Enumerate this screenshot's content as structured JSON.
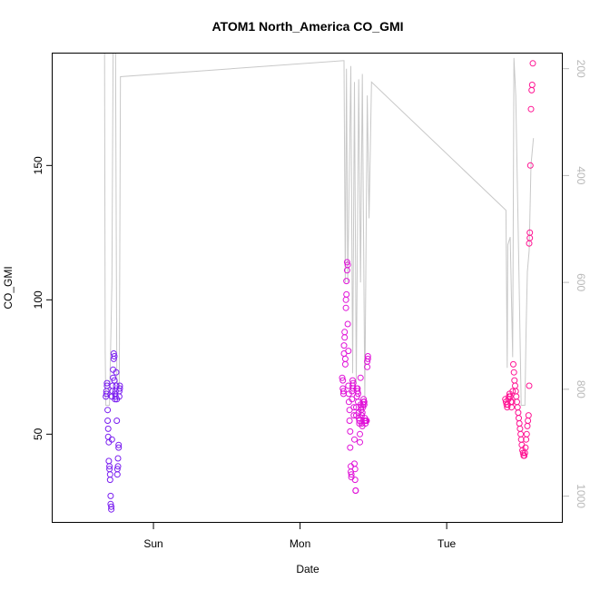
{
  "chart_data": {
    "type": "scatter",
    "title": "ATOM1 North_America CO_GMI",
    "xlabel": "Date",
    "ylabel": "CO_GMI",
    "x_ticks": [
      "Sun",
      "Mon",
      "Tue"
    ],
    "y_ticks": [
      50,
      100,
      150
    ],
    "y2_ticks": [
      200,
      400,
      600,
      800,
      1000
    ],
    "xlim_hours": [
      -16.5,
      67.0
    ],
    "ylim": [
      17,
      192
    ],
    "y2lim": [
      1050,
      170
    ],
    "x_unit": "hours relative to Sun 00:00",
    "y2_reversed": true,
    "grid": false,
    "series": [
      {
        "marker": "open-circle",
        "values": [
          {
            "x": -7.8,
            "y": 64
          },
          {
            "x": -7.7,
            "y": 65
          },
          {
            "x": -7.7,
            "y": 66
          },
          {
            "x": -7.6,
            "y": 68
          },
          {
            "x": -7.6,
            "y": 69
          },
          {
            "x": -7.5,
            "y": 59
          },
          {
            "x": -7.5,
            "y": 55
          },
          {
            "x": -7.4,
            "y": 52
          },
          {
            "x": -7.4,
            "y": 49
          },
          {
            "x": -7.3,
            "y": 47
          },
          {
            "x": -7.3,
            "y": 40
          },
          {
            "x": -7.2,
            "y": 38
          },
          {
            "x": -7.2,
            "y": 37
          },
          {
            "x": -7.1,
            "y": 35
          },
          {
            "x": -7.1,
            "y": 33
          },
          {
            "x": -7.0,
            "y": 27
          },
          {
            "x": -7.0,
            "y": 24
          },
          {
            "x": -6.9,
            "y": 23
          },
          {
            "x": -6.9,
            "y": 22
          },
          {
            "x": -6.8,
            "y": 48
          },
          {
            "x": -6.8,
            "y": 64
          },
          {
            "x": -6.7,
            "y": 66
          },
          {
            "x": -6.7,
            "y": 68
          },
          {
            "x": -6.6,
            "y": 71
          },
          {
            "x": -6.6,
            "y": 74
          },
          {
            "x": -6.5,
            "y": 78
          },
          {
            "x": -6.5,
            "y": 80
          },
          {
            "x": -6.4,
            "y": 79
          },
          {
            "x": -6.4,
            "y": 70
          },
          {
            "x": -6.3,
            "y": 65
          },
          {
            "x": -6.3,
            "y": 63
          },
          {
            "x": -6.2,
            "y": 64
          },
          {
            "x": -6.2,
            "y": 66
          },
          {
            "x": -6.1,
            "y": 73
          },
          {
            "x": -6.1,
            "y": 68
          },
          {
            "x": -6.0,
            "y": 63
          },
          {
            "x": -6.0,
            "y": 55
          },
          {
            "x": -5.9,
            "y": 37
          },
          {
            "x": -5.9,
            "y": 35
          },
          {
            "x": -5.8,
            "y": 38
          },
          {
            "x": -5.8,
            "y": 41
          },
          {
            "x": -5.7,
            "y": 46
          },
          {
            "x": -5.7,
            "y": 45
          },
          {
            "x": -5.6,
            "y": 66
          },
          {
            "x": -5.6,
            "y": 64
          },
          {
            "x": -5.5,
            "y": 68
          },
          {
            "x": -5.5,
            "y": 67
          },
          {
            "x": 30.9,
            "y": 71
          },
          {
            "x": 31.0,
            "y": 70
          },
          {
            "x": 31.0,
            "y": 67
          },
          {
            "x": 31.1,
            "y": 66
          },
          {
            "x": 31.1,
            "y": 65
          },
          {
            "x": 31.2,
            "y": 80
          },
          {
            "x": 31.2,
            "y": 83
          },
          {
            "x": 31.3,
            "y": 86
          },
          {
            "x": 31.3,
            "y": 88
          },
          {
            "x": 31.4,
            "y": 78
          },
          {
            "x": 31.4,
            "y": 76
          },
          {
            "x": 31.5,
            "y": 97
          },
          {
            "x": 31.5,
            "y": 100
          },
          {
            "x": 31.6,
            "y": 102
          },
          {
            "x": 31.6,
            "y": 107
          },
          {
            "x": 31.7,
            "y": 111
          },
          {
            "x": 31.7,
            "y": 114
          },
          {
            "x": 31.8,
            "y": 113
          },
          {
            "x": 31.8,
            "y": 91
          },
          {
            "x": 31.9,
            "y": 81
          },
          {
            "x": 31.9,
            "y": 68
          },
          {
            "x": 32.0,
            "y": 65
          },
          {
            "x": 32.0,
            "y": 62
          },
          {
            "x": 32.1,
            "y": 59
          },
          {
            "x": 32.1,
            "y": 55
          },
          {
            "x": 32.2,
            "y": 51
          },
          {
            "x": 32.2,
            "y": 45
          },
          {
            "x": 32.3,
            "y": 38
          },
          {
            "x": 32.3,
            "y": 36
          },
          {
            "x": 32.4,
            "y": 35
          },
          {
            "x": 32.4,
            "y": 34
          },
          {
            "x": 32.5,
            "y": 63
          },
          {
            "x": 32.5,
            "y": 66
          },
          {
            "x": 32.6,
            "y": 68
          },
          {
            "x": 32.6,
            "y": 70
          },
          {
            "x": 32.7,
            "y": 69
          },
          {
            "x": 32.7,
            "y": 67
          },
          {
            "x": 32.8,
            "y": 60
          },
          {
            "x": 32.8,
            "y": 57
          },
          {
            "x": 32.9,
            "y": 48
          },
          {
            "x": 32.9,
            "y": 39
          },
          {
            "x": 33.0,
            "y": 37
          },
          {
            "x": 33.0,
            "y": 33
          },
          {
            "x": 33.1,
            "y": 29
          },
          {
            "x": 33.1,
            "y": 29
          },
          {
            "x": 33.2,
            "y": 57
          },
          {
            "x": 33.2,
            "y": 60
          },
          {
            "x": 33.3,
            "y": 64
          },
          {
            "x": 33.3,
            "y": 67
          },
          {
            "x": 33.4,
            "y": 67
          },
          {
            "x": 33.4,
            "y": 66
          },
          {
            "x": 33.5,
            "y": 65
          },
          {
            "x": 33.5,
            "y": 62
          },
          {
            "x": 33.6,
            "y": 58
          },
          {
            "x": 33.6,
            "y": 56
          },
          {
            "x": 33.7,
            "y": 55
          },
          {
            "x": 33.7,
            "y": 54
          },
          {
            "x": 33.8,
            "y": 50
          },
          {
            "x": 33.8,
            "y": 47
          },
          {
            "x": 33.9,
            "y": 71
          },
          {
            "x": 33.9,
            "y": 61
          },
          {
            "x": 34.0,
            "y": 60
          },
          {
            "x": 34.0,
            "y": 59
          },
          {
            "x": 34.1,
            "y": 57
          },
          {
            "x": 34.1,
            "y": 54
          },
          {
            "x": 34.2,
            "y": 53
          },
          {
            "x": 34.2,
            "y": 58
          },
          {
            "x": 34.3,
            "y": 60
          },
          {
            "x": 34.3,
            "y": 61
          },
          {
            "x": 34.4,
            "y": 62
          },
          {
            "x": 34.4,
            "y": 63
          },
          {
            "x": 34.5,
            "y": 62
          },
          {
            "x": 34.5,
            "y": 61
          },
          {
            "x": 34.6,
            "y": 56
          },
          {
            "x": 34.6,
            "y": 55
          },
          {
            "x": 34.7,
            "y": 54
          },
          {
            "x": 34.7,
            "y": 55
          },
          {
            "x": 34.8,
            "y": 55
          },
          {
            "x": 34.9,
            "y": 55
          },
          {
            "x": 35.0,
            "y": 75
          },
          {
            "x": 35.0,
            "y": 77
          },
          {
            "x": 35.1,
            "y": 78
          },
          {
            "x": 35.1,
            "y": 79
          },
          {
            "x": 57.6,
            "y": 63
          },
          {
            "x": 57.7,
            "y": 62
          },
          {
            "x": 57.8,
            "y": 61
          },
          {
            "x": 57.9,
            "y": 60
          },
          {
            "x": 58.0,
            "y": 61
          },
          {
            "x": 58.1,
            "y": 63
          },
          {
            "x": 58.2,
            "y": 64
          },
          {
            "x": 58.3,
            "y": 65
          },
          {
            "x": 58.4,
            "y": 64
          },
          {
            "x": 58.5,
            "y": 62
          },
          {
            "x": 58.6,
            "y": 60
          },
          {
            "x": 58.7,
            "y": 62
          },
          {
            "x": 58.8,
            "y": 66
          },
          {
            "x": 58.9,
            "y": 76
          },
          {
            "x": 59.0,
            "y": 73
          },
          {
            "x": 59.1,
            "y": 70
          },
          {
            "x": 59.2,
            "y": 68
          },
          {
            "x": 59.3,
            "y": 66
          },
          {
            "x": 59.4,
            "y": 64
          },
          {
            "x": 59.5,
            "y": 62
          },
          {
            "x": 59.6,
            "y": 60
          },
          {
            "x": 59.7,
            "y": 58
          },
          {
            "x": 59.8,
            "y": 56
          },
          {
            "x": 59.9,
            "y": 54
          },
          {
            "x": 60.0,
            "y": 52
          },
          {
            "x": 60.1,
            "y": 50
          },
          {
            "x": 60.2,
            "y": 48
          },
          {
            "x": 60.3,
            "y": 46
          },
          {
            "x": 60.4,
            "y": 44
          },
          {
            "x": 60.5,
            "y": 43
          },
          {
            "x": 60.6,
            "y": 42
          },
          {
            "x": 60.7,
            "y": 42
          },
          {
            "x": 60.8,
            "y": 43
          },
          {
            "x": 60.9,
            "y": 45
          },
          {
            "x": 61.0,
            "y": 48
          },
          {
            "x": 61.1,
            "y": 50
          },
          {
            "x": 61.2,
            "y": 53
          },
          {
            "x": 61.3,
            "y": 55
          },
          {
            "x": 61.4,
            "y": 57
          },
          {
            "x": 61.5,
            "y": 68
          },
          {
            "x": 61.5,
            "y": 121
          },
          {
            "x": 61.6,
            "y": 123
          },
          {
            "x": 61.6,
            "y": 125
          },
          {
            "x": 61.7,
            "y": 150
          },
          {
            "x": 61.8,
            "y": 171
          },
          {
            "x": 61.9,
            "y": 178
          },
          {
            "x": 62.0,
            "y": 180
          },
          {
            "x": 62.1,
            "y": 188
          }
        ]
      }
    ],
    "pressure_line": {
      "axis": "right",
      "color": "#c8c8c8",
      "points": [
        {
          "x": -8.0,
          "y": 170
        },
        {
          "x": -7.9,
          "y": 730
        },
        {
          "x": -7.8,
          "y": 830
        },
        {
          "x": -7.2,
          "y": 830
        },
        {
          "x": -6.8,
          "y": 600
        },
        {
          "x": -6.6,
          "y": 170
        },
        {
          "x": -6.2,
          "y": 170
        },
        {
          "x": -6.0,
          "y": 780
        },
        {
          "x": -5.6,
          "y": 800
        },
        {
          "x": -5.4,
          "y": 215
        },
        {
          "x": 31.2,
          "y": 185
        },
        {
          "x": 31.4,
          "y": 600
        },
        {
          "x": 31.6,
          "y": 200
        },
        {
          "x": 31.8,
          "y": 600
        },
        {
          "x": 32.3,
          "y": 195
        },
        {
          "x": 32.6,
          "y": 770
        },
        {
          "x": 32.9,
          "y": 225
        },
        {
          "x": 33.2,
          "y": 790
        },
        {
          "x": 33.6,
          "y": 220
        },
        {
          "x": 33.9,
          "y": 600
        },
        {
          "x": 34.2,
          "y": 210
        },
        {
          "x": 34.6,
          "y": 820
        },
        {
          "x": 35.0,
          "y": 250
        },
        {
          "x": 35.3,
          "y": 480
        },
        {
          "x": 35.7,
          "y": 225
        },
        {
          "x": 57.7,
          "y": 465
        },
        {
          "x": 57.9,
          "y": 760
        },
        {
          "x": 58.0,
          "y": 530
        },
        {
          "x": 58.4,
          "y": 515
        },
        {
          "x": 58.8,
          "y": 740
        },
        {
          "x": 59.0,
          "y": 180
        },
        {
          "x": 59.3,
          "y": 250
        },
        {
          "x": 59.8,
          "y": 560
        },
        {
          "x": 60.2,
          "y": 830
        },
        {
          "x": 60.8,
          "y": 830
        },
        {
          "x": 61.0,
          "y": 690
        },
        {
          "x": 61.2,
          "y": 580
        },
        {
          "x": 61.5,
          "y": 540
        },
        {
          "x": 61.8,
          "y": 380
        },
        {
          "x": 62.2,
          "y": 330
        }
      ]
    },
    "colors": {
      "sun_points": "#7a1ef0",
      "mon_points": "#e013d8",
      "tue_points": "#ff1493",
      "pressure_line": "#c8c8c8",
      "right_axis": "#b8b8b8"
    }
  }
}
